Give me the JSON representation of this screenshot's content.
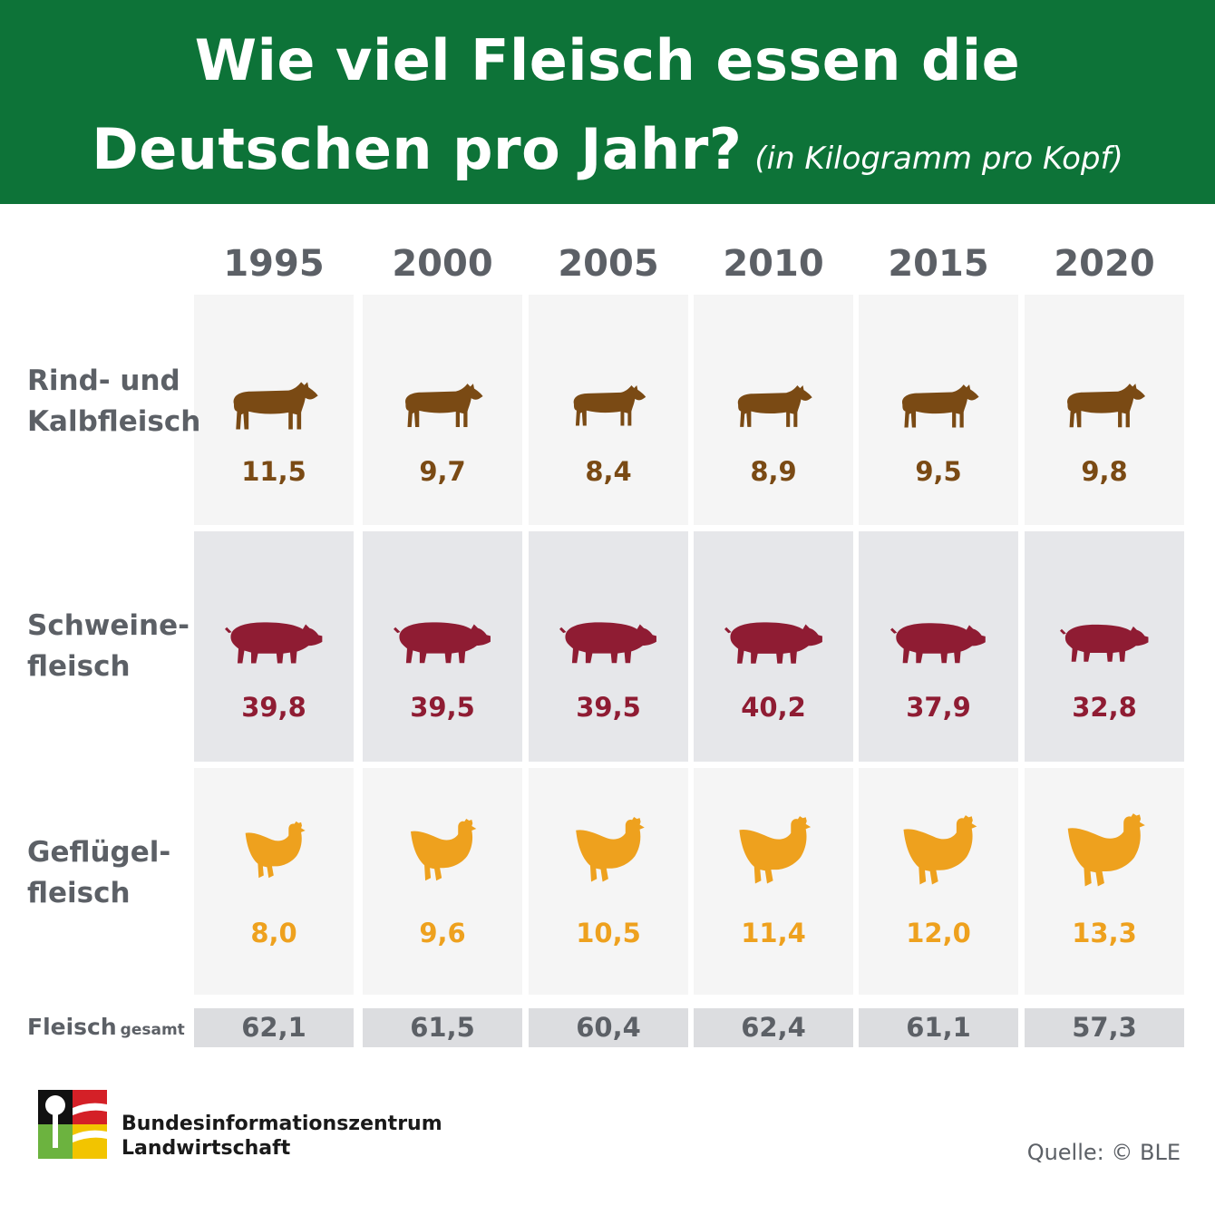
{
  "header": {
    "title_line1": "Wie viel Fleisch essen die",
    "title_line2": "Deutschen pro Jahr?",
    "unit_note": "(in Kilogramm pro Kopf)"
  },
  "colors": {
    "header_bg": "#0d7338",
    "rind": "#7a4a14",
    "schwein": "#8f1c33",
    "gefluegel": "#eea11e",
    "text_gray": "#5c6066"
  },
  "chart_data": {
    "type": "table",
    "title": "Wie viel Fleisch essen die Deutschen pro Jahr?",
    "subtitle": "(in Kilogramm pro Kopf)",
    "categories": [
      "1995",
      "2000",
      "2005",
      "2010",
      "2015",
      "2020"
    ],
    "series": [
      {
        "name": "Rind- und Kalbfleisch",
        "name_lines": [
          "Rind- und",
          "Kalbfleisch"
        ],
        "icon": "cow-icon",
        "values": [
          11.5,
          9.7,
          8.4,
          8.9,
          9.5,
          9.8
        ],
        "labels": [
          "11,5",
          "9,7",
          "8,4",
          "8,9",
          "9,5",
          "9,8"
        ]
      },
      {
        "name": "Schweinefleisch",
        "name_lines": [
          "Schweine-",
          "fleisch"
        ],
        "icon": "pig-icon",
        "values": [
          39.8,
          39.5,
          39.5,
          40.2,
          37.9,
          32.8
        ],
        "labels": [
          "39,8",
          "39,5",
          "39,5",
          "40,2",
          "37,9",
          "32,8"
        ]
      },
      {
        "name": "Geflügelfleisch",
        "name_lines": [
          "Geflügel-",
          "fleisch"
        ],
        "icon": "chicken-icon",
        "values": [
          8.0,
          9.6,
          10.5,
          11.4,
          12.0,
          13.3
        ],
        "labels": [
          "8,0",
          "9,6",
          "10,5",
          "11,4",
          "12,0",
          "13,3"
        ]
      }
    ],
    "total": {
      "label": "Fleisch",
      "label_sub": "gesamt",
      "values": [
        62.1,
        61.5,
        60.4,
        62.4,
        61.1,
        57.3
      ],
      "labels": [
        "62,1",
        "61,5",
        "60,4",
        "62,4",
        "61,1",
        "57,3"
      ]
    }
  },
  "footer": {
    "org_line1": "Bundesinformationszentrum",
    "org_line2": "Landwirtschaft",
    "source": "Quelle: © BLE"
  }
}
